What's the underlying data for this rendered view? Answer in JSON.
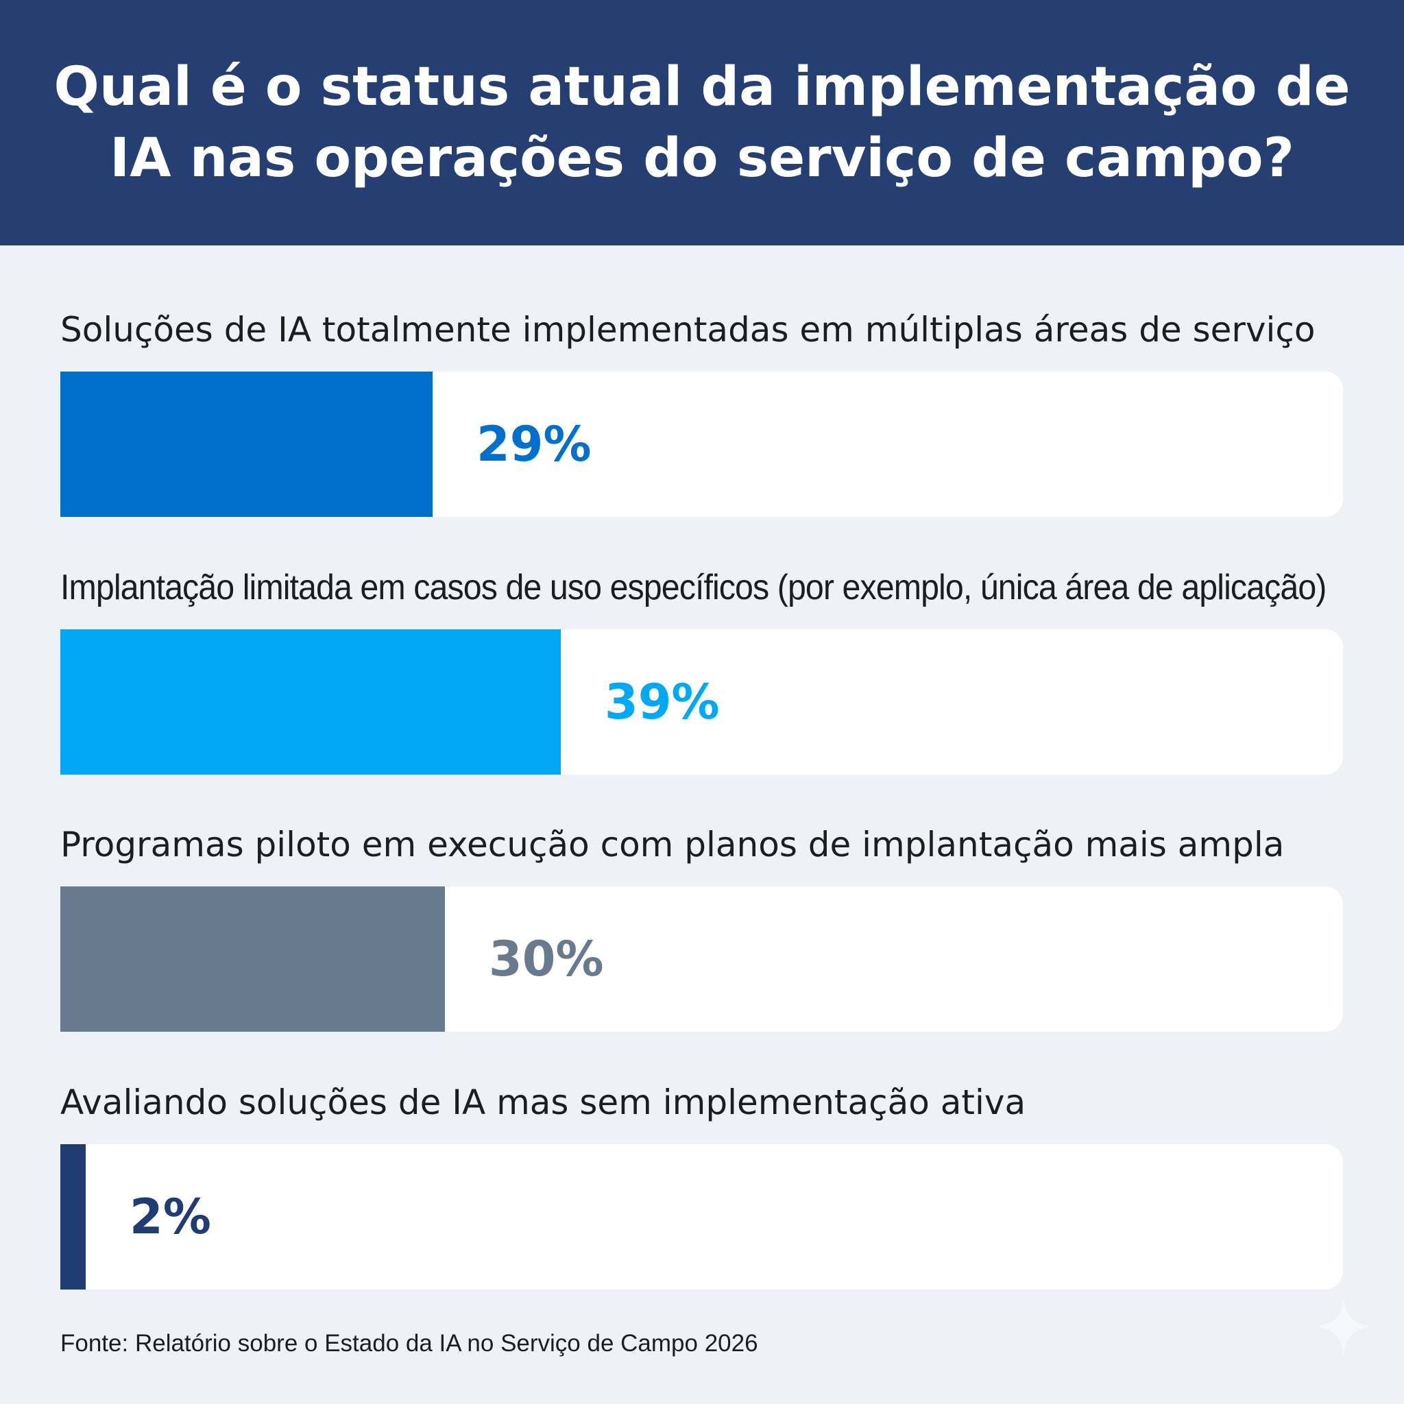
{
  "title": "Qual é o status atual da implementação de IA nas operações do serviço de campo?",
  "chart_data": {
    "type": "bar",
    "orientation": "horizontal",
    "title": "Qual é o status atual da implementação de IA nas operações do serviço de campo?",
    "categories": [
      "Soluções de IA totalmente implementadas em múltiplas áreas de serviço",
      "Implantação limitada em casos de uso específicos (por exemplo, única área de aplicação)",
      "Programas piloto em execução com planos de implantação mais ampla",
      "Avaliando soluções de IA mas sem implementação ativa"
    ],
    "values": [
      29,
      39,
      30,
      2
    ],
    "value_labels": [
      "29%",
      "39%",
      "30%",
      "2%"
    ],
    "colors": [
      "#0070cc",
      "#00a8f5",
      "#687a8e",
      "#1f3d73"
    ],
    "xlim": [
      0,
      100
    ],
    "unit": "%",
    "grid": false
  },
  "source": "Fonte: Relatório sobre o Estado da IA no Serviço de Campo 2026",
  "colors": {
    "header": "#253f73",
    "background": "#eef1f6"
  }
}
